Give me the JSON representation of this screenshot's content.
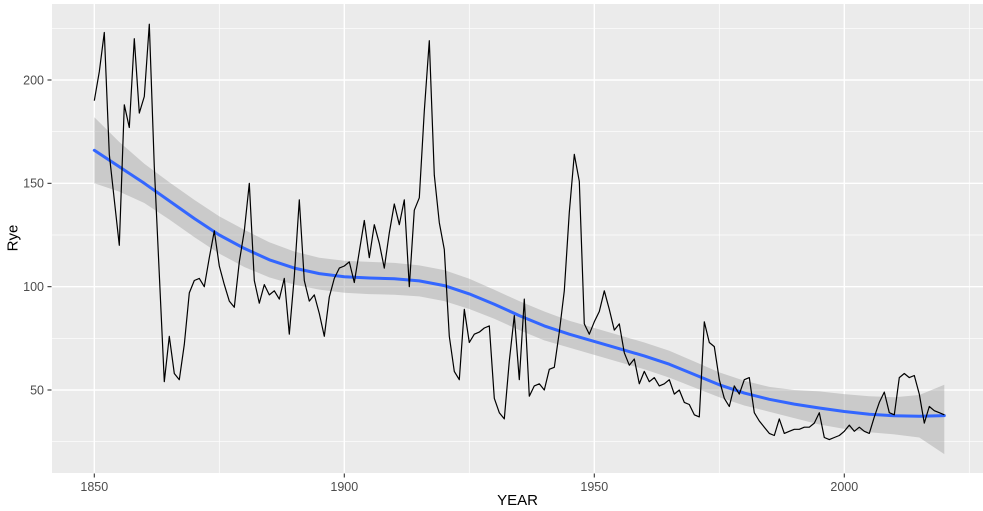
{
  "figure": {
    "xlabel": "YEAR",
    "ylabel": "Rye"
  },
  "chart_data": {
    "type": "line",
    "title": "",
    "xlabel": "YEAR",
    "ylabel": "Rye",
    "x_ticks": [
      1850,
      1900,
      1950,
      2000
    ],
    "x_minor_ticks": [
      1875,
      1925,
      1975,
      2025
    ],
    "y_ticks": [
      50,
      100,
      150,
      200
    ],
    "y_minor_ticks": [
      25,
      75,
      125,
      175,
      225
    ],
    "xlim": [
      1841.5,
      2028.5
    ],
    "ylim": [
      7.5,
      237.5
    ],
    "grid": true,
    "legend": "none",
    "colors": {
      "panel_background": "#EBEBEB",
      "grid": "#FFFFFF",
      "observed_line": "#000000",
      "smooth_line": "#3366FF",
      "confidence_band": "#999999",
      "tick_text": "#4D4D4D",
      "tick_mark": "#333333",
      "axis_title": "#000000"
    },
    "series": [
      {
        "name": "rye-observed",
        "type": "line",
        "color": "#000000",
        "x_start": 1850,
        "x_step": 1,
        "values": [
          190,
          204,
          223,
          164,
          142,
          120,
          188,
          177,
          220,
          184,
          192,
          227,
          158,
          106,
          54,
          76,
          58,
          55,
          72,
          97,
          103,
          104,
          100,
          114,
          127,
          110,
          101,
          93,
          90,
          112,
          127,
          150,
          103,
          92,
          101,
          96,
          98,
          94,
          104,
          77,
          105,
          142,
          103,
          93,
          96,
          87,
          76,
          95,
          104,
          109,
          110,
          112,
          102,
          117,
          132,
          114,
          130,
          121,
          109,
          126,
          140,
          130,
          142,
          100,
          137,
          143,
          185,
          219,
          154,
          131,
          118,
          76,
          59,
          55,
          89,
          73,
          77,
          78,
          80,
          81,
          46,
          39,
          36,
          64,
          86,
          55,
          94,
          47,
          52,
          53,
          50,
          60,
          61,
          78,
          98,
          136,
          164,
          151,
          82,
          77,
          83,
          88,
          98,
          89,
          79,
          82,
          68,
          62,
          65,
          53,
          59,
          54,
          56,
          52,
          53,
          55,
          48,
          50,
          44,
          43,
          38,
          37,
          83,
          73,
          71,
          55,
          46,
          42,
          52,
          48,
          55,
          56,
          39,
          35,
          32,
          29,
          28,
          36,
          29,
          30,
          31,
          31,
          32,
          32,
          34,
          39,
          27,
          26,
          27,
          28,
          30,
          33,
          30,
          32,
          30,
          29,
          37,
          44,
          49,
          39,
          38,
          56,
          58,
          56,
          57,
          48,
          34,
          42,
          40,
          39,
          38
        ]
      },
      {
        "name": "loess-smooth",
        "type": "line",
        "color": "#3366FF",
        "x_start": 1850,
        "x_step": 5,
        "values": [
          166,
          158,
          150,
          141.5,
          133,
          125,
          118.5,
          113,
          109,
          106.3,
          104.8,
          104.2,
          103.8,
          102.8,
          100.5,
          96.5,
          91.5,
          86,
          81,
          77,
          73.5,
          70,
          66.5,
          62.5,
          57.5,
          52.5,
          48.5,
          45.5,
          43.2,
          41.3,
          39.6,
          38.3,
          37.5,
          37.3,
          37.6
        ]
      },
      {
        "name": "confidence-band",
        "type": "area",
        "color": "#999999",
        "opacity": 0.4,
        "x_start": 1850,
        "x_step": 5,
        "upper": [
          182,
          170,
          159.5,
          150.5,
          142,
          134,
          127.5,
          121.5,
          117,
          114,
          112.5,
          112,
          111.5,
          110.3,
          108,
          103.8,
          98.5,
          93,
          88,
          83.5,
          80,
          76.5,
          73,
          69,
          63.8,
          58.5,
          54.5,
          51.5,
          50,
          49.3,
          48,
          47,
          46.5,
          47.6,
          52.5
        ],
        "lower": [
          150,
          146,
          140.5,
          132.5,
          124,
          116,
          109.5,
          104.5,
          101,
          98.6,
          97.1,
          96.4,
          96.1,
          95.3,
          93,
          89.2,
          84.5,
          79,
          74,
          70.5,
          67,
          63.5,
          60,
          56,
          51.2,
          46.5,
          42.5,
          39.5,
          36.4,
          33.3,
          31.2,
          29.6,
          28.5,
          27,
          19
        ]
      }
    ]
  }
}
